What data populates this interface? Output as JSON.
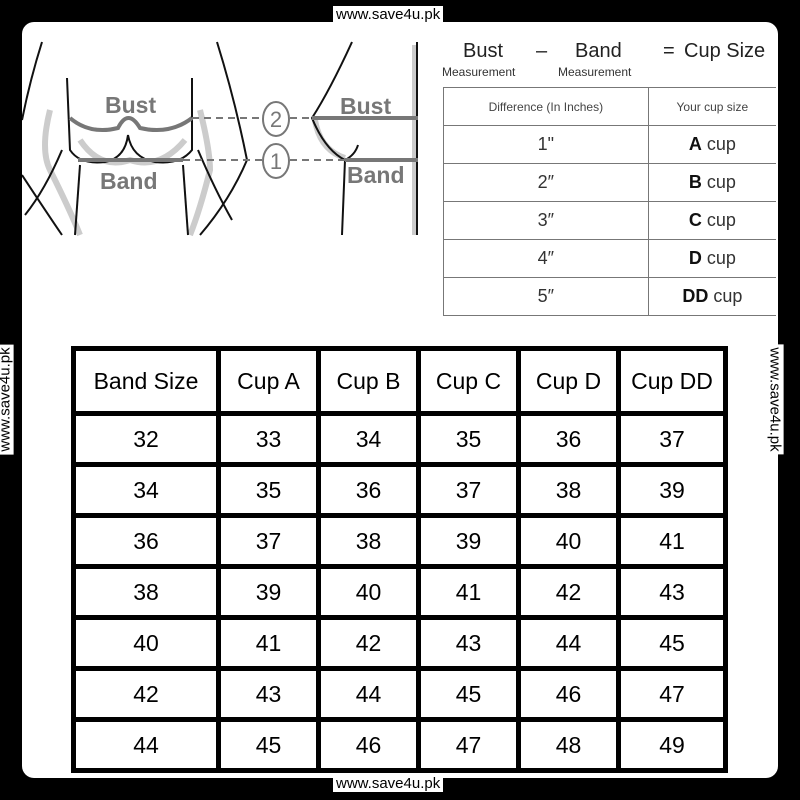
{
  "watermark": "www.save4u.pk",
  "illustration": {
    "bust_label": "Bust",
    "band_label": "Band",
    "marker_bust": "2",
    "marker_band": "1"
  },
  "formula": {
    "bust": "Bust",
    "minus": "–",
    "band": "Band",
    "equals": "=",
    "result": "Cup Size",
    "bust_sub": "Measurement",
    "band_sub": "Measurement"
  },
  "cup_table": {
    "headers": [
      "Difference (In Inches)",
      "Your cup size"
    ],
    "rows": [
      {
        "diff": "1\"",
        "letter": "A",
        "suffix": " cup"
      },
      {
        "diff": "2″",
        "letter": "B",
        "suffix": " cup"
      },
      {
        "diff": "3″",
        "letter": "C",
        "suffix": " cup"
      },
      {
        "diff": "4″",
        "letter": "D",
        "suffix": " cup"
      },
      {
        "diff": "5″",
        "letter": "DD",
        "suffix": " cup"
      }
    ]
  },
  "size_table": {
    "headers": [
      "Band Size",
      "Cup A",
      "Cup B",
      "Cup C",
      "Cup D",
      "Cup DD"
    ],
    "rows": [
      [
        "32",
        "33",
        "34",
        "35",
        "36",
        "37"
      ],
      [
        "34",
        "35",
        "36",
        "37",
        "38",
        "39"
      ],
      [
        "36",
        "37",
        "38",
        "39",
        "40",
        "41"
      ],
      [
        "38",
        "39",
        "40",
        "41",
        "42",
        "43"
      ],
      [
        "40",
        "41",
        "42",
        "43",
        "44",
        "45"
      ],
      [
        "42",
        "43",
        "44",
        "45",
        "46",
        "47"
      ],
      [
        "44",
        "45",
        "46",
        "47",
        "48",
        "49"
      ]
    ]
  }
}
